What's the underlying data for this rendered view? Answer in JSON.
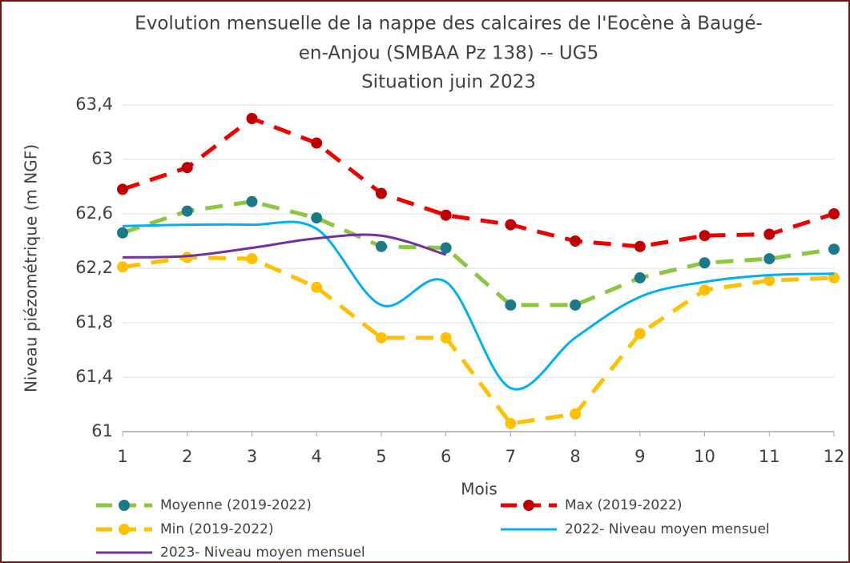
{
  "chart_data": {
    "type": "line",
    "title": [
      "Evolution mensuelle de la nappe des calcaires de l'Eocène à Baugé-",
      "en-Anjou  (SMBAA Pz 138) -- UG5",
      "Situation juin 2023"
    ],
    "x_label": "Mois",
    "y_label": "Niveau piézométrique (m NGF)",
    "x": [
      1,
      2,
      3,
      4,
      5,
      6,
      7,
      8,
      9,
      10,
      11,
      12
    ],
    "xlim": [
      1,
      12
    ],
    "xticks": [
      1,
      2,
      3,
      4,
      5,
      6,
      7,
      8,
      9,
      10,
      11,
      12
    ],
    "ylim": [
      61,
      63.4
    ],
    "yticks": [
      61,
      {
        "value": 61.4,
        "label": "61,4"
      },
      {
        "value": 61.8,
        "label": "61,8"
      },
      {
        "value": 62.2,
        "label": "62,2"
      },
      {
        "value": 62.6,
        "label": "62,6"
      },
      63,
      {
        "value": 63.4,
        "label": "63,4"
      }
    ],
    "grid": true,
    "series": [
      {
        "name": "Moyenne (2019-2022)",
        "color": "#8dc63f",
        "marker_color": "#1a7a8a",
        "dashed": true,
        "markers": true,
        "smooth": false,
        "values": [
          62.46,
          62.62,
          62.69,
          62.57,
          62.36,
          62.35,
          61.93,
          61.93,
          62.13,
          62.24,
          62.27,
          62.34
        ]
      },
      {
        "name": "Max (2019-2022)",
        "color": "#ee0000",
        "marker_color": "#c00000",
        "dashed": true,
        "markers": true,
        "smooth": false,
        "values": [
          62.78,
          62.94,
          63.3,
          63.12,
          62.75,
          62.59,
          62.52,
          62.4,
          62.36,
          62.44,
          62.45,
          62.6
        ]
      },
      {
        "name": "Min (2019-2022)",
        "color": "#ffc000",
        "marker_color": "#ffc000",
        "dashed": true,
        "markers": true,
        "smooth": false,
        "values": [
          62.21,
          62.28,
          62.27,
          62.06,
          61.69,
          61.69,
          61.06,
          61.13,
          61.72,
          62.04,
          62.11,
          62.13
        ]
      },
      {
        "name": "2022- Niveau moyen mensuel",
        "color": "#00b0f0",
        "dashed": false,
        "markers": false,
        "smooth": true,
        "values": [
          62.51,
          62.52,
          62.52,
          62.49,
          61.93,
          62.1,
          61.32,
          61.69,
          61.99,
          62.1,
          62.15,
          62.16
        ]
      },
      {
        "name": "2023- Niveau moyen mensuel",
        "color": "#7030a0",
        "dashed": false,
        "markers": false,
        "smooth": true,
        "values": [
          62.28,
          62.29,
          62.35,
          62.42,
          62.44,
          62.3,
          null,
          null,
          null,
          null,
          null,
          null
        ]
      }
    ]
  }
}
